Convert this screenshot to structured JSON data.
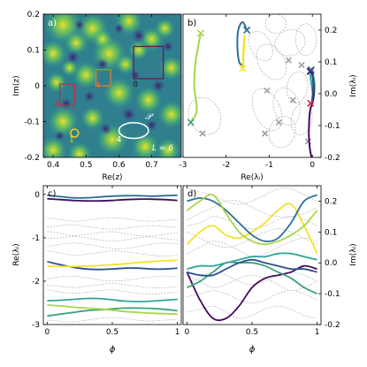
{
  "chart_data": [
    {
      "panel_label": "a)",
      "type": "heatmap",
      "xlabel": "Re(z)",
      "ylabel": "Im(z)",
      "xlim": [
        0.37,
        0.79
      ],
      "ylim": [
        -0.2,
        0.2
      ],
      "xticks": [
        0.4,
        0.5,
        0.6,
        0.7
      ],
      "xtick_labels": [
        "0.4",
        "0.5",
        "0.6",
        "0.7"
      ],
      "yticks": [
        -0.2,
        -0.1,
        0.0,
        0.1,
        0.2
      ],
      "ytick_labels": [
        "-0.2",
        "-0.1",
        "0",
        "0.1",
        "0.2"
      ],
      "colormap": "viridis",
      "annotation_L": "L = 6",
      "annotation_P": "𝒫",
      "boxes": [
        {
          "label": "1",
          "shape": "circle",
          "cx": 0.465,
          "cy": -0.132,
          "r": 0.012,
          "color": "#f0d020"
        },
        {
          "label": "4",
          "shape": "square",
          "x0": 0.53,
          "x1": 0.575,
          "y0": 0.0,
          "y1": 0.045,
          "color": "#e07a35"
        },
        {
          "label": "6",
          "shape": "square",
          "x0": 0.42,
          "x1": 0.465,
          "y0": -0.055,
          "y1": 0.005,
          "color": "#c8284a"
        },
        {
          "label": "8",
          "shape": "square",
          "x0": 0.645,
          "x1": 0.735,
          "y0": 0.02,
          "y1": 0.11,
          "color": "#6a1b4d"
        }
      ],
      "contour_P": {
        "label": "𝒫",
        "center": [
          0.645,
          -0.125
        ],
        "rx": 0.045,
        "ry": 0.022,
        "color": "#ffffff"
      },
      "point_labels": [
        {
          "text": "1",
          "x": 0.448,
          "y": -0.157
        },
        {
          "text": "4",
          "x": 0.528,
          "y": -0.005
        },
        {
          "text": "6",
          "x": 0.405,
          "y": -0.058
        },
        {
          "text": "8",
          "x": 0.643,
          "y": -0.002
        },
        {
          "text": "4",
          "x": 0.592,
          "y": -0.157
        }
      ]
    },
    {
      "panel_label": "b)",
      "type": "line",
      "xlabel": "Re(λᵢ)",
      "ylabel": "Im(λᵢ)",
      "xlim": [
        -3,
        0.2
      ],
      "ylim": [
        -0.2,
        0.25
      ],
      "xticks": [
        -3,
        -2,
        -1,
        0
      ],
      "xtick_labels": [
        "-3",
        "-2",
        "-1",
        "0"
      ],
      "yticks": [
        -0.2,
        -0.1,
        0.0,
        0.1,
        0.2
      ],
      "ytick_labels": [
        "-0.2",
        "-0.1",
        "0.0",
        "0.1",
        "0.2"
      ],
      "series": [
        {
          "color": "#a6d64a",
          "x": [
            -2.59,
            -2.62,
            -2.66,
            -2.7,
            -2.73,
            -2.74,
            -2.7,
            -2.68,
            -2.72,
            -2.78,
            -2.82,
            -2.82
          ],
          "y": [
            0.19,
            0.17,
            0.14,
            0.11,
            0.07,
            0.02,
            -0.02,
            -0.05,
            -0.07,
            -0.08,
            -0.09,
            -0.09
          ],
          "start_marker": "x",
          "end_marker": "x",
          "start_color": "#a6d64a",
          "end_color": "#3aa37a"
        },
        {
          "color": "#2a6f97",
          "x": [
            -1.52,
            -1.62,
            -1.72,
            -1.74,
            -1.7,
            -1.62,
            -1.58
          ],
          "y": [
            0.2,
            0.225,
            0.2,
            0.15,
            0.1,
            0.09,
            0.085
          ],
          "start_marker": "x",
          "end_marker": "none",
          "start_color": "#2a6f97"
        },
        {
          "color": "#f5e12a",
          "x": [
            -1.58,
            -1.6,
            -1.6,
            -1.58,
            -1.58,
            -1.62
          ],
          "y": [
            0.085,
            0.09,
            0.12,
            0.15,
            0.18,
            0.08
          ],
          "start_marker": "none",
          "end_marker": "x",
          "end_color": "#f5e12a"
        },
        {
          "color": "#2ea59a",
          "x": [
            -0.05,
            -0.04,
            -0.02,
            0.0,
            0.03,
            0.05,
            0.0
          ],
          "y": [
            0.07,
            0.05,
            0.03,
            0.01,
            -0.01,
            0.03,
            0.07
          ],
          "start_marker": "x",
          "end_marker": "none",
          "start_color": "#2ea59a"
        },
        {
          "color": "#440a5c",
          "x": [
            -0.02,
            -0.05,
            -0.08,
            -0.08,
            -0.06,
            -0.03,
            0.02,
            0.03,
            0.0,
            -0.05
          ],
          "y": [
            -0.2,
            -0.18,
            -0.14,
            -0.1,
            -0.06,
            -0.04,
            -0.02,
            0.02,
            0.06,
            0.07
          ],
          "start_marker": "none",
          "end_marker": "x",
          "end_color": "#440a5c"
        },
        {
          "color": "#2e4f90",
          "x": [
            -0.03,
            0.0,
            0.02,
            0.01,
            -0.02,
            -0.04
          ],
          "y": [
            0.075,
            0.06,
            0.03,
            0.0,
            -0.03,
            -0.03
          ],
          "start_marker": "x",
          "end_marker": "x",
          "start_color": "#2e4f90",
          "end_color": "#c8284a"
        }
      ],
      "grey_markers": [
        {
          "x": -0.55,
          "y": 0.105
        },
        {
          "x": -0.25,
          "y": 0.09
        },
        {
          "x": -1.05,
          "y": 0.01
        },
        {
          "x": -0.45,
          "y": -0.02
        },
        {
          "x": -0.78,
          "y": -0.09
        },
        {
          "x": -1.1,
          "y": -0.125
        },
        {
          "x": -2.55,
          "y": -0.125
        },
        {
          "x": -0.1,
          "y": -0.15
        }
      ]
    },
    {
      "panel_label": "c)",
      "type": "line",
      "xlabel": "ϕ",
      "ylabel": "Re(λᵢ)",
      "xlim": [
        -0.03,
        1.03
      ],
      "ylim": [
        -3,
        0.2
      ],
      "xticks": [
        0,
        0.5,
        1
      ],
      "xtick_labels": [
        "0",
        "0.5",
        "1"
      ],
      "yticks": [
        -3,
        -2,
        -1,
        0
      ],
      "ytick_labels": [
        "-3",
        "-2",
        "-1",
        "0"
      ],
      "x": [
        0,
        0.1,
        0.2,
        0.3,
        0.4,
        0.5,
        0.6,
        0.7,
        0.8,
        0.9,
        1.0
      ],
      "series": [
        {
          "color": "#2a6f97",
          "values": [
            -0.02,
            -0.05,
            -0.08,
            -0.08,
            -0.06,
            -0.04,
            -0.03,
            -0.03,
            -0.04,
            -0.03,
            -0.02
          ]
        },
        {
          "color": "#440a5c",
          "values": [
            -0.1,
            -0.12,
            -0.14,
            -0.15,
            -0.15,
            -0.14,
            -0.12,
            -0.11,
            -0.11,
            -0.12,
            -0.14
          ]
        },
        {
          "color": "#2e4f90",
          "values": [
            -1.55,
            -1.62,
            -1.68,
            -1.72,
            -1.73,
            -1.72,
            -1.7,
            -1.7,
            -1.72,
            -1.72,
            -1.7
          ]
        },
        {
          "color": "#f5e12a",
          "values": [
            -1.65,
            -1.66,
            -1.66,
            -1.65,
            -1.64,
            -1.62,
            -1.6,
            -1.57,
            -1.55,
            -1.53,
            -1.52
          ]
        },
        {
          "color": "#2ea59a",
          "values": [
            -2.45,
            -2.44,
            -2.42,
            -2.4,
            -2.4,
            -2.43,
            -2.46,
            -2.47,
            -2.46,
            -2.44,
            -2.42
          ]
        },
        {
          "color": "#3aa37a",
          "values": [
            -2.8,
            -2.76,
            -2.72,
            -2.68,
            -2.66,
            -2.64,
            -2.62,
            -2.62,
            -2.63,
            -2.65,
            -2.68
          ]
        },
        {
          "color": "#a6d64a",
          "values": [
            -2.55,
            -2.57,
            -2.6,
            -2.62,
            -2.64,
            -2.67,
            -2.7,
            -2.72,
            -2.74,
            -2.75,
            -2.76
          ]
        }
      ],
      "grey_series": [
        [
          -0.55,
          -0.58,
          -0.62,
          -0.6,
          -0.56,
          -0.54,
          -0.56,
          -0.6,
          -0.62,
          -0.6,
          -0.58
        ],
        [
          -0.75,
          -0.72,
          -0.7,
          -0.74,
          -0.78,
          -0.8,
          -0.78,
          -0.74,
          -0.72,
          -0.74,
          -0.76
        ],
        [
          -0.85,
          -0.9,
          -0.95,
          -0.92,
          -0.88,
          -0.86,
          -0.9,
          -0.95,
          -0.96,
          -0.92,
          -0.88
        ],
        [
          -1.02,
          -1.0,
          -0.97,
          -1.0,
          -1.05,
          -1.08,
          -1.05,
          -1.0,
          -0.98,
          -1.02,
          -1.05
        ],
        [
          -1.2,
          -1.15,
          -1.12,
          -1.15,
          -1.2,
          -1.25,
          -1.25,
          -1.2,
          -1.15,
          -1.12,
          -1.14
        ],
        [
          -1.3,
          -1.35,
          -1.4,
          -1.38,
          -1.34,
          -1.3,
          -1.32,
          -1.36,
          -1.4,
          -1.42,
          -1.4
        ],
        [
          -1.95,
          -1.9,
          -1.88,
          -1.92,
          -1.97,
          -2.0,
          -1.98,
          -1.94,
          -1.9,
          -1.88,
          -1.9
        ],
        [
          -2.1,
          -2.12,
          -2.15,
          -2.12,
          -2.08,
          -2.05,
          -2.08,
          -2.12,
          -2.15,
          -2.15,
          -2.12
        ],
        [
          -2.2,
          -2.25,
          -2.28,
          -2.26,
          -2.22,
          -2.2,
          -2.24,
          -2.28,
          -2.3,
          -2.28,
          -2.25
        ],
        [
          -2.9,
          -2.92,
          -2.94,
          -2.9,
          -2.86,
          -2.84,
          -2.86,
          -2.9,
          -2.92,
          -2.9,
          -2.88
        ]
      ]
    },
    {
      "panel_label": "d)",
      "type": "line",
      "xlabel": "ϕ",
      "ylabel": "Im(λᵢ)",
      "xlim": [
        -0.03,
        1.03
      ],
      "ylim": [
        -0.2,
        0.25
      ],
      "xticks": [
        0,
        0.5,
        1
      ],
      "xtick_labels": [
        "0",
        "0.5",
        "1"
      ],
      "yticks": [
        -0.2,
        -0.1,
        0.0,
        0.1,
        0.2
      ],
      "ytick_labels": [
        "-0.2",
        "-0.1",
        "0.0",
        "0.1",
        "0.2"
      ],
      "x": [
        0,
        0.1,
        0.2,
        0.3,
        0.4,
        0.5,
        0.6,
        0.7,
        0.8,
        0.9,
        1.0
      ],
      "series": [
        {
          "color": "#440a5c",
          "values": [
            -0.03,
            -0.12,
            -0.18,
            -0.18,
            -0.14,
            -0.08,
            -0.05,
            -0.04,
            -0.03,
            -0.01,
            -0.02
          ]
        },
        {
          "color": "#f5e12a",
          "values": [
            0.06,
            0.1,
            0.12,
            0.09,
            0.08,
            0.1,
            0.13,
            0.17,
            0.19,
            0.12,
            0.03
          ]
        },
        {
          "color": "#2a6f97",
          "values": [
            0.2,
            0.21,
            0.2,
            0.17,
            0.13,
            0.09,
            0.07,
            0.08,
            0.13,
            0.2,
            0.22
          ]
        },
        {
          "color": "#a6d64a",
          "values": [
            0.17,
            0.2,
            0.22,
            0.16,
            0.1,
            0.07,
            0.06,
            0.07,
            0.09,
            0.12,
            0.17
          ]
        },
        {
          "color": "#3aa37a",
          "values": [
            -0.08,
            -0.06,
            -0.03,
            0.0,
            0.0,
            0.0,
            -0.01,
            -0.03,
            -0.05,
            -0.08,
            -0.1
          ]
        },
        {
          "color": "#2ea59a",
          "values": [
            -0.02,
            -0.01,
            -0.01,
            0.0,
            0.01,
            0.02,
            0.02,
            0.03,
            0.03,
            0.02,
            0.01
          ]
        },
        {
          "color": "#2e4f90",
          "values": [
            -0.03,
            -0.04,
            -0.04,
            -0.02,
            0.0,
            0.01,
            0.0,
            -0.01,
            -0.02,
            -0.02,
            -0.03
          ]
        }
      ],
      "grey_series": [
        [
          0.24,
          0.23,
          0.22,
          0.2,
          0.19,
          0.2,
          0.22,
          0.24,
          0.24,
          0.22,
          0.2
        ],
        [
          0.14,
          0.16,
          0.18,
          0.2,
          0.2,
          0.18,
          0.16,
          0.15,
          0.15,
          0.16,
          0.18
        ],
        [
          0.1,
          0.08,
          0.06,
          0.05,
          0.06,
          0.08,
          0.1,
          0.11,
          0.1,
          0.08,
          0.06
        ],
        [
          0.03,
          0.05,
          0.07,
          0.06,
          0.04,
          0.02,
          0.03,
          0.05,
          0.07,
          0.08,
          0.07
        ],
        [
          -0.04,
          -0.06,
          -0.08,
          -0.07,
          -0.05,
          -0.04,
          -0.05,
          -0.07,
          -0.09,
          -0.08,
          -0.06
        ],
        [
          -0.11,
          -0.1,
          -0.09,
          -0.1,
          -0.12,
          -0.13,
          -0.12,
          -0.1,
          -0.09,
          -0.1,
          -0.12
        ],
        [
          -0.16,
          -0.15,
          -0.14,
          -0.16,
          -0.18,
          -0.17,
          -0.15,
          -0.14,
          -0.15,
          -0.17,
          -0.18
        ],
        [
          0.12,
          0.13,
          0.15,
          0.14,
          0.12,
          0.11,
          0.12,
          0.14,
          0.15,
          0.14,
          0.12
        ],
        [
          -0.07,
          -0.05,
          -0.03,
          -0.04,
          -0.06,
          -0.07,
          -0.06,
          -0.04,
          -0.03,
          -0.04,
          -0.06
        ]
      ]
    }
  ]
}
